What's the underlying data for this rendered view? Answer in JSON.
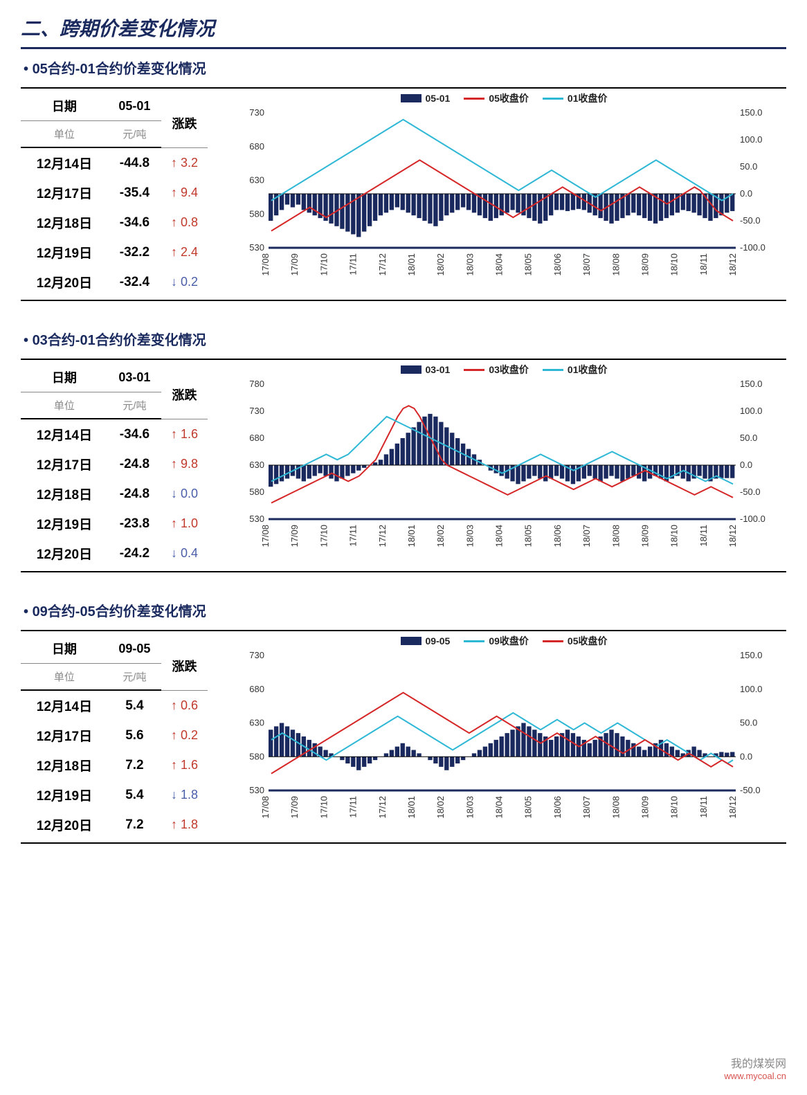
{
  "title": "二、跨期价差变化情况",
  "colors": {
    "navy": "#1a2a5e",
    "red": "#d62728",
    "cyan": "#2eb8d6",
    "darkbar": "#1a2a5e",
    "grid": "#cccccc",
    "up": "#c0392b",
    "down": "#4a5ea8"
  },
  "x_labels": [
    "2017/08",
    "2017/09",
    "2017/10",
    "2017/11",
    "2017/12",
    "2018/01",
    "2018/02",
    "2018/03",
    "2018/04",
    "2018/05",
    "2018/06",
    "2018/07",
    "2018/08",
    "2018/09",
    "2018/10",
    "2018/11",
    "2018/12"
  ],
  "sections": [
    {
      "title": "05合约-01合约价差变化情况",
      "spread_label": "05-01",
      "unit_label": "元/吨",
      "headers": {
        "date": "日期",
        "change": "涨跌",
        "unit": "单位"
      },
      "rows": [
        {
          "date": "12月14日",
          "val": "-44.8",
          "chg": "3.2",
          "dir": "up"
        },
        {
          "date": "12月17日",
          "val": "-35.4",
          "chg": "9.4",
          "dir": "up"
        },
        {
          "date": "12月18日",
          "val": "-34.6",
          "chg": "0.8",
          "dir": "up"
        },
        {
          "date": "12月19日",
          "val": "-32.2",
          "chg": "2.4",
          "dir": "up"
        },
        {
          "date": "12月20日",
          "val": "-32.4",
          "chg": "0.2",
          "dir": "down"
        }
      ],
      "legend": [
        {
          "type": "bar",
          "color": "#1a2a5e",
          "label": "05-01"
        },
        {
          "type": "line",
          "color": "#d62728",
          "label": "05收盘价"
        },
        {
          "type": "line",
          "color": "#2eb8d6",
          "label": "01收盘价"
        }
      ],
      "left_axis": {
        "min": 530,
        "max": 730,
        "step": 50
      },
      "right_axis": {
        "min": -100,
        "max": 150,
        "step": 50
      },
      "bars": [
        -50,
        -40,
        -30,
        -20,
        -25,
        -20,
        -30,
        -35,
        -40,
        -45,
        -50,
        -55,
        -60,
        -65,
        -70,
        -75,
        -80,
        -70,
        -60,
        -50,
        -40,
        -35,
        -30,
        -25,
        -30,
        -35,
        -40,
        -45,
        -50,
        -55,
        -60,
        -50,
        -40,
        -35,
        -30,
        -25,
        -30,
        -35,
        -40,
        -45,
        -50,
        -45,
        -40,
        -35,
        -30,
        -35,
        -40,
        -45,
        -50,
        -55,
        -50,
        -40,
        -30,
        -30,
        -32,
        -30,
        -28,
        -30,
        -35,
        -40,
        -45,
        -50,
        -55,
        -50,
        -45,
        -40,
        -35,
        -40,
        -45,
        -50,
        -55,
        -50,
        -45,
        -40,
        -35,
        -30,
        -32,
        -35,
        -40,
        -45,
        -50,
        -45,
        -40,
        -35,
        -32
      ],
      "line1_color": "#d62728",
      "line1": [
        555,
        560,
        565,
        570,
        575,
        580,
        585,
        590,
        585,
        580,
        575,
        580,
        585,
        590,
        595,
        600,
        605,
        610,
        615,
        620,
        625,
        630,
        635,
        640,
        645,
        650,
        655,
        660,
        655,
        650,
        645,
        640,
        635,
        630,
        625,
        620,
        615,
        610,
        605,
        600,
        595,
        590,
        585,
        580,
        575,
        580,
        585,
        590,
        595,
        600,
        605,
        610,
        615,
        620,
        615,
        610,
        605,
        600,
        595,
        590,
        585,
        590,
        595,
        600,
        605,
        610,
        615,
        620,
        615,
        610,
        605,
        600,
        595,
        600,
        605,
        610,
        615,
        620,
        615,
        605,
        595,
        585,
        580,
        575,
        570
      ],
      "line2_color": "#2eb8d6",
      "line2": [
        600,
        605,
        610,
        615,
        620,
        625,
        630,
        635,
        640,
        645,
        650,
        655,
        660,
        665,
        670,
        675,
        680,
        685,
        690,
        695,
        700,
        705,
        710,
        715,
        720,
        715,
        710,
        705,
        700,
        695,
        690,
        685,
        680,
        675,
        670,
        665,
        660,
        655,
        650,
        645,
        640,
        635,
        630,
        625,
        620,
        615,
        620,
        625,
        630,
        635,
        640,
        645,
        640,
        635,
        630,
        625,
        620,
        615,
        610,
        605,
        610,
        615,
        620,
        625,
        630,
        635,
        640,
        645,
        650,
        655,
        660,
        655,
        650,
        645,
        640,
        635,
        630,
        625,
        620,
        615,
        610,
        605,
        600,
        605,
        610
      ]
    },
    {
      "title": "03合约-01合约价差变化情况",
      "spread_label": "03-01",
      "unit_label": "元/吨",
      "headers": {
        "date": "日期",
        "change": "涨跌",
        "unit": "单位"
      },
      "rows": [
        {
          "date": "12月14日",
          "val": "-34.6",
          "chg": "1.6",
          "dir": "up"
        },
        {
          "date": "12月17日",
          "val": "-24.8",
          "chg": "9.8",
          "dir": "up"
        },
        {
          "date": "12月18日",
          "val": "-24.8",
          "chg": "0.0",
          "dir": "down"
        },
        {
          "date": "12月19日",
          "val": "-23.8",
          "chg": "1.0",
          "dir": "up"
        },
        {
          "date": "12月20日",
          "val": "-24.2",
          "chg": "0.4",
          "dir": "down"
        }
      ],
      "legend": [
        {
          "type": "bar",
          "color": "#1a2a5e",
          "label": "03-01"
        },
        {
          "type": "line",
          "color": "#d62728",
          "label": "03收盘价"
        },
        {
          "type": "line",
          "color": "#2eb8d6",
          "label": "01收盘价"
        }
      ],
      "left_axis": {
        "min": 530,
        "max": 780,
        "step": 50
      },
      "right_axis": {
        "min": -100,
        "max": 150,
        "step": 50
      },
      "bars": [
        -40,
        -35,
        -30,
        -25,
        -20,
        -25,
        -30,
        -25,
        -20,
        -15,
        -20,
        -25,
        -30,
        -25,
        -20,
        -15,
        -10,
        -5,
        0,
        5,
        10,
        20,
        30,
        40,
        50,
        60,
        70,
        80,
        90,
        95,
        90,
        80,
        70,
        60,
        50,
        40,
        30,
        20,
        10,
        0,
        -10,
        -15,
        -20,
        -25,
        -30,
        -35,
        -30,
        -25,
        -20,
        -25,
        -30,
        -25,
        -20,
        -25,
        -30,
        -35,
        -30,
        -25,
        -20,
        -25,
        -30,
        -25,
        -20,
        -25,
        -30,
        -25,
        -20,
        -25,
        -30,
        -25,
        -20,
        -25,
        -30,
        -25,
        -20,
        -25,
        -30,
        -25,
        -20,
        -25,
        -30,
        -25,
        -24,
        -24,
        -24
      ],
      "line1_color": "#d62728",
      "line1": [
        560,
        565,
        570,
        575,
        580,
        585,
        590,
        595,
        600,
        605,
        610,
        615,
        610,
        605,
        600,
        605,
        610,
        620,
        630,
        640,
        660,
        680,
        700,
        720,
        735,
        740,
        735,
        720,
        700,
        680,
        660,
        640,
        630,
        625,
        620,
        615,
        610,
        605,
        600,
        595,
        590,
        585,
        580,
        575,
        580,
        585,
        590,
        595,
        600,
        605,
        610,
        605,
        600,
        595,
        590,
        585,
        590,
        595,
        600,
        605,
        600,
        595,
        590,
        595,
        600,
        605,
        610,
        615,
        620,
        615,
        610,
        605,
        600,
        595,
        590,
        585,
        580,
        575,
        580,
        585,
        590,
        585,
        580,
        575,
        570
      ],
      "line2_color": "#2eb8d6",
      "line2": [
        600,
        605,
        610,
        615,
        620,
        625,
        630,
        635,
        640,
        645,
        650,
        645,
        640,
        645,
        650,
        660,
        670,
        680,
        690,
        700,
        710,
        720,
        715,
        710,
        705,
        700,
        695,
        690,
        685,
        680,
        675,
        670,
        665,
        660,
        655,
        650,
        645,
        640,
        635,
        630,
        625,
        620,
        615,
        620,
        625,
        630,
        635,
        640,
        645,
        650,
        645,
        640,
        635,
        630,
        625,
        620,
        625,
        630,
        635,
        640,
        645,
        650,
        655,
        650,
        645,
        640,
        635,
        630,
        625,
        620,
        615,
        610,
        605,
        610,
        615,
        620,
        615,
        610,
        605,
        600,
        605,
        610,
        605,
        600,
        595
      ]
    },
    {
      "title": "09合约-05合约价差变化情况",
      "spread_label": "09-05",
      "unit_label": "元/吨",
      "headers": {
        "date": "日期",
        "change": "涨跌",
        "unit": "单位"
      },
      "rows": [
        {
          "date": "12月14日",
          "val": "5.4",
          "chg": "0.6",
          "dir": "up"
        },
        {
          "date": "12月17日",
          "val": "5.6",
          "chg": "0.2",
          "dir": "up"
        },
        {
          "date": "12月18日",
          "val": "7.2",
          "chg": "1.6",
          "dir": "up"
        },
        {
          "date": "12月19日",
          "val": "5.4",
          "chg": "1.8",
          "dir": "down"
        },
        {
          "date": "12月20日",
          "val": "7.2",
          "chg": "1.8",
          "dir": "up"
        }
      ],
      "legend": [
        {
          "type": "bar",
          "color": "#1a2a5e",
          "label": "09-05"
        },
        {
          "type": "line",
          "color": "#2eb8d6",
          "label": "09收盘价"
        },
        {
          "type": "line",
          "color": "#d62728",
          "label": "05收盘价"
        }
      ],
      "left_axis": {
        "min": 530,
        "max": 730,
        "step": 50
      },
      "right_axis": {
        "min": -50,
        "max": 150,
        "step": 50
      },
      "bars": [
        40,
        45,
        50,
        45,
        40,
        35,
        30,
        25,
        20,
        15,
        10,
        5,
        0,
        -5,
        -10,
        -15,
        -20,
        -15,
        -10,
        -5,
        0,
        5,
        10,
        15,
        20,
        15,
        10,
        5,
        0,
        -5,
        -10,
        -15,
        -20,
        -15,
        -10,
        -5,
        0,
        5,
        10,
        15,
        20,
        25,
        30,
        35,
        40,
        45,
        50,
        45,
        40,
        35,
        30,
        25,
        30,
        35,
        40,
        35,
        30,
        25,
        20,
        25,
        30,
        35,
        40,
        35,
        30,
        25,
        20,
        15,
        10,
        15,
        20,
        25,
        20,
        15,
        10,
        5,
        10,
        15,
        10,
        5,
        0,
        5,
        7,
        6,
        7
      ],
      "line1_color": "#2eb8d6",
      "line1": [
        605,
        610,
        615,
        610,
        605,
        600,
        595,
        590,
        585,
        580,
        575,
        580,
        585,
        590,
        595,
        600,
        605,
        610,
        615,
        620,
        625,
        630,
        635,
        640,
        635,
        630,
        625,
        620,
        615,
        610,
        605,
        600,
        595,
        590,
        595,
        600,
        605,
        610,
        615,
        620,
        625,
        630,
        635,
        640,
        645,
        640,
        635,
        630,
        625,
        620,
        625,
        630,
        635,
        630,
        625,
        620,
        625,
        630,
        625,
        620,
        615,
        620,
        625,
        630,
        625,
        620,
        615,
        610,
        605,
        600,
        595,
        600,
        605,
        600,
        595,
        590,
        585,
        580,
        575,
        580,
        585,
        580,
        575,
        570,
        575
      ],
      "line2_color": "#d62728",
      "line2": [
        555,
        560,
        565,
        570,
        575,
        580,
        585,
        590,
        595,
        600,
        605,
        610,
        615,
        620,
        625,
        630,
        635,
        640,
        645,
        650,
        655,
        660,
        665,
        670,
        675,
        670,
        665,
        660,
        655,
        650,
        645,
        640,
        635,
        630,
        625,
        620,
        615,
        620,
        625,
        630,
        635,
        640,
        635,
        630,
        625,
        620,
        615,
        610,
        605,
        600,
        605,
        610,
        615,
        610,
        605,
        600,
        595,
        600,
        605,
        610,
        605,
        600,
        595,
        590,
        585,
        590,
        595,
        600,
        605,
        600,
        595,
        590,
        585,
        580,
        575,
        580,
        585,
        580,
        575,
        570,
        565,
        570,
        575,
        570,
        565
      ]
    }
  ],
  "footer": {
    "brand": "我的煤炭网",
    "url": "www.mycoal.cn"
  }
}
